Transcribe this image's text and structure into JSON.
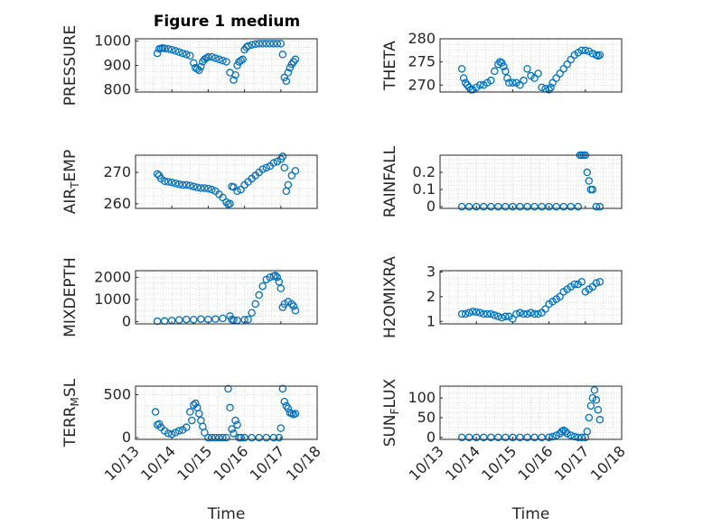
{
  "title": "Figure 1 medium",
  "colors": {
    "marker": "#0072BD",
    "axis": "#262626",
    "grid": "#d9d9d9"
  },
  "chart_data": [
    {
      "id": "pressure",
      "type": "scatter",
      "xlabel": "",
      "ylabel": "PRESSURE",
      "xlim": [
        0,
        5
      ],
      "ylim": [
        790,
        1010
      ],
      "yticks": [
        800,
        900,
        1000
      ],
      "ytick_labels": [
        "800",
        "900",
        "1000"
      ],
      "x": [
        0.6,
        0.65,
        0.7,
        0.75,
        0.8,
        0.9,
        1.0,
        1.1,
        1.2,
        1.3,
        1.4,
        1.5,
        1.6,
        1.65,
        1.7,
        1.75,
        1.8,
        1.85,
        1.9,
        1.95,
        2.0,
        2.1,
        2.2,
        2.3,
        2.4,
        2.5,
        2.6,
        2.7,
        2.75,
        2.8,
        2.85,
        2.9,
        2.95,
        3.0,
        3.05,
        3.1,
        3.2,
        3.3,
        3.4,
        3.5,
        3.6,
        3.7,
        3.8,
        3.9,
        4.0,
        4.05,
        4.1,
        4.15,
        4.2,
        4.25,
        4.3,
        4.35,
        4.4
      ],
      "y": [
        950,
        968,
        970,
        972,
        970,
        968,
        965,
        960,
        955,
        950,
        945,
        940,
        910,
        890,
        885,
        880,
        895,
        915,
        925,
        930,
        935,
        935,
        930,
        925,
        920,
        915,
        870,
        840,
        860,
        900,
        915,
        920,
        925,
        965,
        975,
        980,
        985,
        988,
        990,
        990,
        990,
        990,
        990,
        990,
        990,
        945,
        850,
        835,
        870,
        890,
        905,
        915,
        925
      ]
    },
    {
      "id": "theta",
      "type": "scatter",
      "xlabel": "",
      "ylabel": "THETA",
      "xlim": [
        0,
        5
      ],
      "ylim": [
        268.5,
        280
      ],
      "yticks": [
        270,
        275,
        280
      ],
      "ytick_labels": [
        "270",
        "275",
        "280"
      ],
      "x": [
        0.6,
        0.65,
        0.7,
        0.75,
        0.8,
        0.85,
        0.9,
        1.0,
        1.1,
        1.2,
        1.3,
        1.4,
        1.5,
        1.6,
        1.65,
        1.7,
        1.75,
        1.8,
        1.85,
        1.9,
        2.0,
        2.1,
        2.2,
        2.3,
        2.4,
        2.5,
        2.6,
        2.7,
        2.8,
        2.9,
        3.0,
        3.05,
        3.1,
        3.2,
        3.3,
        3.4,
        3.5,
        3.6,
        3.7,
        3.8,
        3.9,
        4.0,
        4.1,
        4.2,
        4.3,
        4.35,
        4.4
      ],
      "y": [
        273.5,
        271.5,
        270.5,
        270,
        269.5,
        269,
        269,
        269.5,
        270,
        270,
        270.5,
        271,
        273,
        274.5,
        275,
        274.8,
        274,
        273,
        271.5,
        270.5,
        270.5,
        270.5,
        270,
        271,
        273.5,
        272,
        271.5,
        272.5,
        269.5,
        269.2,
        269,
        269.5,
        270.5,
        271.5,
        272.5,
        273.5,
        274.5,
        275.5,
        276.5,
        277,
        277.5,
        277.5,
        277.3,
        276.8,
        276.5,
        276.3,
        276.5
      ]
    },
    {
      "id": "air_temp",
      "type": "scatter",
      "xlabel": "",
      "ylabel": "AIR_TEMP",
      "xlim": [
        0,
        5
      ],
      "ylim": [
        258.5,
        275.5
      ],
      "yticks": [
        260,
        270
      ],
      "ytick_labels": [
        "260",
        "270"
      ],
      "x": [
        0.6,
        0.65,
        0.7,
        0.8,
        0.9,
        1.0,
        1.1,
        1.2,
        1.3,
        1.4,
        1.5,
        1.6,
        1.7,
        1.8,
        1.9,
        2.0,
        2.1,
        2.2,
        2.3,
        2.4,
        2.5,
        2.55,
        2.6,
        2.65,
        2.7,
        2.8,
        2.9,
        3.0,
        3.1,
        3.2,
        3.3,
        3.4,
        3.5,
        3.6,
        3.7,
        3.8,
        3.9,
        4.0,
        4.05,
        4.1,
        4.15,
        4.2,
        4.3,
        4.4
      ],
      "y": [
        269.5,
        269,
        268,
        267.2,
        267,
        266.8,
        266.5,
        266.2,
        266,
        266,
        265.8,
        265.5,
        265.2,
        265,
        265,
        264.8,
        264.5,
        264,
        263,
        262,
        260.5,
        259.8,
        260,
        265.5,
        265.3,
        264,
        264.5,
        266,
        267,
        268,
        269,
        270,
        271,
        271.5,
        272,
        273,
        273.5,
        274.2,
        275.1,
        271.5,
        264,
        266,
        269,
        270.5
      ]
    },
    {
      "id": "rainfall",
      "type": "scatter",
      "xlabel": "",
      "ylabel": "RAINFALL",
      "xlim": [
        0,
        5
      ],
      "ylim": [
        -0.01,
        0.3
      ],
      "yticks": [
        0,
        0.1,
        0.2
      ],
      "ytick_labels": [
        "0",
        "0.1",
        "0.2"
      ],
      "x": [
        0.6,
        0.8,
        1.0,
        1.2,
        1.4,
        1.6,
        1.8,
        2.0,
        2.2,
        2.4,
        2.6,
        2.8,
        3.0,
        3.2,
        3.4,
        3.6,
        3.8,
        3.85,
        3.9,
        3.95,
        4.0,
        4.05,
        4.1,
        4.15,
        4.2,
        4.3,
        4.4
      ],
      "y": [
        0,
        0,
        0,
        0,
        0,
        0,
        0,
        0,
        0,
        0,
        0,
        0,
        0,
        0,
        0,
        0,
        0,
        0.3,
        0.3,
        0.3,
        0.3,
        0.2,
        0.15,
        0.1,
        0.1,
        0,
        0
      ]
    },
    {
      "id": "mixdepth",
      "type": "scatter",
      "xlabel": "",
      "ylabel": "MIXDEPTH",
      "xlim": [
        0,
        5
      ],
      "ylim": [
        -100,
        2300
      ],
      "yticks": [
        0,
        1000,
        2000
      ],
      "ytick_labels": [
        "0",
        "1000",
        "2000"
      ],
      "x": [
        0.6,
        0.8,
        1.0,
        1.2,
        1.4,
        1.6,
        1.8,
        2.0,
        2.2,
        2.4,
        2.6,
        2.65,
        2.7,
        2.8,
        3.0,
        3.1,
        3.2,
        3.3,
        3.4,
        3.5,
        3.6,
        3.7,
        3.8,
        3.85,
        3.9,
        3.95,
        4.0,
        4.05,
        4.1,
        4.2,
        4.3,
        4.35,
        4.4
      ],
      "y": [
        20,
        30,
        50,
        80,
        100,
        90,
        120,
        100,
        120,
        150,
        250,
        100,
        80,
        60,
        90,
        100,
        400,
        800,
        1200,
        1600,
        1900,
        2000,
        2050,
        2080,
        2000,
        1800,
        1500,
        650,
        800,
        900,
        800,
        700,
        500
      ]
    },
    {
      "id": "h2omixra",
      "type": "scatter",
      "xlabel": "",
      "ylabel": "H2OMIXRA",
      "xlim": [
        0,
        5
      ],
      "ylim": [
        0.9,
        3.05
      ],
      "yticks": [
        1,
        2,
        3
      ],
      "ytick_labels": [
        "1",
        "2",
        "3"
      ],
      "x": [
        0.6,
        0.7,
        0.8,
        0.9,
        1.0,
        1.1,
        1.2,
        1.3,
        1.4,
        1.5,
        1.6,
        1.7,
        1.8,
        1.9,
        2.0,
        2.1,
        2.2,
        2.3,
        2.4,
        2.5,
        2.6,
        2.7,
        2.8,
        2.9,
        3.0,
        3.1,
        3.2,
        3.3,
        3.4,
        3.5,
        3.6,
        3.7,
        3.8,
        3.9,
        4.0,
        4.1,
        4.2,
        4.3,
        4.4
      ],
      "y": [
        1.3,
        1.3,
        1.35,
        1.4,
        1.38,
        1.35,
        1.3,
        1.3,
        1.3,
        1.25,
        1.2,
        1.15,
        1.2,
        1.2,
        1.1,
        1.3,
        1.35,
        1.3,
        1.3,
        1.35,
        1.3,
        1.3,
        1.35,
        1.5,
        1.7,
        1.8,
        1.9,
        2.0,
        2.2,
        2.3,
        2.4,
        2.5,
        2.5,
        2.6,
        2.2,
        2.3,
        2.4,
        2.55,
        2.6
      ]
    },
    {
      "id": "terr_msl",
      "type": "scatter",
      "xlabel": "Time",
      "ylabel": "TERR_MSL",
      "xlim": [
        0,
        5
      ],
      "ylim": [
        -20,
        600
      ],
      "yticks": [
        0,
        500
      ],
      "ytick_labels": [
        "0",
        "500"
      ],
      "x": [
        0.55,
        0.6,
        0.65,
        0.7,
        0.8,
        0.9,
        1.0,
        1.1,
        1.2,
        1.3,
        1.4,
        1.5,
        1.55,
        1.6,
        1.65,
        1.7,
        1.75,
        1.8,
        1.85,
        1.9,
        2.0,
        2.1,
        2.2,
        2.3,
        2.4,
        2.5,
        2.55,
        2.6,
        2.65,
        2.7,
        2.75,
        2.8,
        2.85,
        2.9,
        3.0,
        3.2,
        3.4,
        3.6,
        3.8,
        3.95,
        4.0,
        4.05,
        4.1,
        4.15,
        4.2,
        4.25,
        4.3,
        4.35,
        4.4
      ],
      "y": [
        300,
        150,
        160,
        120,
        80,
        50,
        40,
        60,
        80,
        90,
        120,
        300,
        200,
        380,
        400,
        350,
        280,
        200,
        130,
        60,
        0,
        0,
        0,
        0,
        0,
        0,
        570,
        350,
        100,
        50,
        200,
        150,
        0,
        0,
        0,
        0,
        0,
        0,
        0,
        0,
        110,
        570,
        420,
        370,
        340,
        290,
        280,
        270,
        280
      ]
    },
    {
      "id": "sun_flux",
      "type": "scatter",
      "xlabel": "Time",
      "ylabel": "SUN_FLUX",
      "xlim": [
        0,
        5
      ],
      "ylim": [
        -5,
        130
      ],
      "yticks": [
        0,
        50,
        100
      ],
      "ytick_labels": [
        "0",
        "50",
        "100"
      ],
      "x": [
        0.6,
        0.8,
        1.0,
        1.2,
        1.4,
        1.6,
        1.8,
        2.0,
        2.2,
        2.4,
        2.6,
        2.8,
        3.0,
        3.1,
        3.2,
        3.3,
        3.35,
        3.4,
        3.45,
        3.5,
        3.6,
        3.7,
        3.8,
        3.9,
        4.0,
        4.05,
        4.1,
        4.15,
        4.2,
        4.25,
        4.3,
        4.35,
        4.4
      ],
      "y": [
        0,
        0,
        0,
        0,
        0,
        0,
        0,
        0,
        0,
        0,
        0,
        0,
        0,
        2,
        5,
        10,
        15,
        18,
        15,
        10,
        5,
        2,
        0,
        0,
        0,
        15,
        50,
        80,
        100,
        120,
        95,
        70,
        45
      ]
    }
  ],
  "xtick_labels": [
    "10/13",
    "10/14",
    "10/15",
    "10/16",
    "10/17",
    "10/18"
  ],
  "xticks": [
    0,
    1,
    2,
    3,
    4,
    5
  ]
}
